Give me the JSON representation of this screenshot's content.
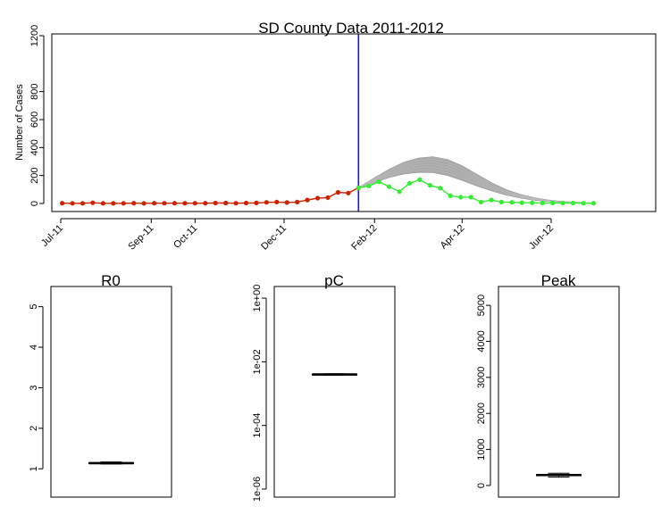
{
  "chart_data": [
    {
      "type": "line",
      "title": "SD County Data 2011-2012",
      "ylabel": "Number of Cases",
      "ylim": [
        0,
        1200
      ],
      "yticks": [
        0,
        200,
        400,
        600,
        800,
        1200
      ],
      "xlim": [
        "2011-07-01",
        "2012-07-31"
      ],
      "xticks": [
        {
          "date": "2011-07-01",
          "label": "Jul-11"
        },
        {
          "date": "2011-09-01",
          "label": "Sep-11"
        },
        {
          "date": "2011-10-01",
          "label": "Oct-11"
        },
        {
          "date": "2011-12-01",
          "label": "Dec-11"
        },
        {
          "date": "2012-02-01",
          "label": "Feb-12"
        },
        {
          "date": "2012-04-01",
          "label": "Apr-12"
        },
        {
          "date": "2012-06-01",
          "label": "Jun-12"
        }
      ],
      "cutoff_date": "2012-01-21",
      "series": [
        {
          "color": "#cc2200",
          "x": [
            "2011-07-02",
            "2011-07-09",
            "2011-07-16",
            "2011-07-23",
            "2011-07-30",
            "2011-08-06",
            "2011-08-13",
            "2011-08-20",
            "2011-08-27",
            "2011-09-03",
            "2011-09-10",
            "2011-09-17",
            "2011-09-24",
            "2011-10-01",
            "2011-10-08",
            "2011-10-15",
            "2011-10-22",
            "2011-10-29",
            "2011-11-05",
            "2011-11-12",
            "2011-11-19",
            "2011-11-26",
            "2011-12-03",
            "2011-12-10",
            "2011-12-17",
            "2011-12-24",
            "2011-12-31",
            "2012-01-07",
            "2012-01-14",
            "2012-01-21"
          ],
          "y": [
            2,
            1,
            1,
            5,
            1,
            1,
            1,
            2,
            1,
            2,
            2,
            2,
            2,
            2,
            2,
            3,
            3,
            2,
            3,
            4,
            8,
            10,
            7,
            10,
            25,
            38,
            42,
            80,
            75,
            112
          ]
        },
        {
          "color": "#33ee33",
          "x": [
            "2012-01-21",
            "2012-01-28",
            "2012-02-04",
            "2012-02-11",
            "2012-02-18",
            "2012-02-25",
            "2012-03-03",
            "2012-03-10",
            "2012-03-17",
            "2012-03-24",
            "2012-03-31",
            "2012-04-07",
            "2012-04-14",
            "2012-04-21",
            "2012-04-28",
            "2012-05-05",
            "2012-05-12",
            "2012-05-19",
            "2012-05-26",
            "2012-06-02",
            "2012-06-09",
            "2012-06-16",
            "2012-06-23",
            "2012-06-30"
          ],
          "y": [
            112,
            125,
            155,
            120,
            85,
            145,
            170,
            130,
            110,
            55,
            45,
            45,
            10,
            25,
            10,
            8,
            6,
            5,
            3,
            4,
            3,
            3,
            2,
            2
          ]
        }
      ],
      "forecast_band": {
        "color": "#aaaaaa",
        "x": [
          "2012-01-21",
          "2012-02-01",
          "2012-02-11",
          "2012-02-21",
          "2012-03-02",
          "2012-03-12",
          "2012-03-22",
          "2012-04-01",
          "2012-04-11",
          "2012-04-21",
          "2012-05-01",
          "2012-05-11",
          "2012-05-21",
          "2012-05-31",
          "2012-06-10",
          "2012-06-20",
          "2012-06-30"
        ],
        "lower": [
          110,
          150,
          185,
          210,
          222,
          220,
          200,
          165,
          125,
          90,
          60,
          38,
          22,
          13,
          7,
          4,
          2
        ],
        "upper": [
          115,
          185,
          245,
          295,
          325,
          335,
          315,
          270,
          210,
          150,
          100,
          65,
          40,
          24,
          14,
          8,
          4
        ]
      }
    },
    {
      "type": "box",
      "title": "R0",
      "ylim": [
        0.5,
        5.3
      ],
      "yticks": [
        1,
        2,
        3,
        4,
        5
      ],
      "median": 1.14,
      "q1": 1.13,
      "q3": 1.15,
      "whisker_low": 1.12,
      "whisker_high": 1.17
    },
    {
      "type": "box",
      "title": "pC",
      "scale": "log",
      "ylim": [
        1e-06,
        1.3
      ],
      "yticks": [
        {
          "value": 1e-06,
          "label": "1e-06"
        },
        {
          "value": 0.0001,
          "label": "1e-04"
        },
        {
          "value": 0.01,
          "label": "1e-02"
        },
        {
          "value": 1,
          "label": "1e+00"
        }
      ],
      "median": 0.004,
      "q1": 0.0039,
      "q3": 0.0041,
      "whisker_low": 0.0038,
      "whisker_high": 0.0042
    },
    {
      "type": "box",
      "title": "Peak",
      "ylim": [
        -100,
        5300
      ],
      "yticks": [
        0,
        1000,
        2000,
        3000,
        4000,
        5000
      ],
      "median": 290,
      "q1": 270,
      "q3": 300,
      "whisker_low": 230,
      "whisker_high": 340
    }
  ]
}
